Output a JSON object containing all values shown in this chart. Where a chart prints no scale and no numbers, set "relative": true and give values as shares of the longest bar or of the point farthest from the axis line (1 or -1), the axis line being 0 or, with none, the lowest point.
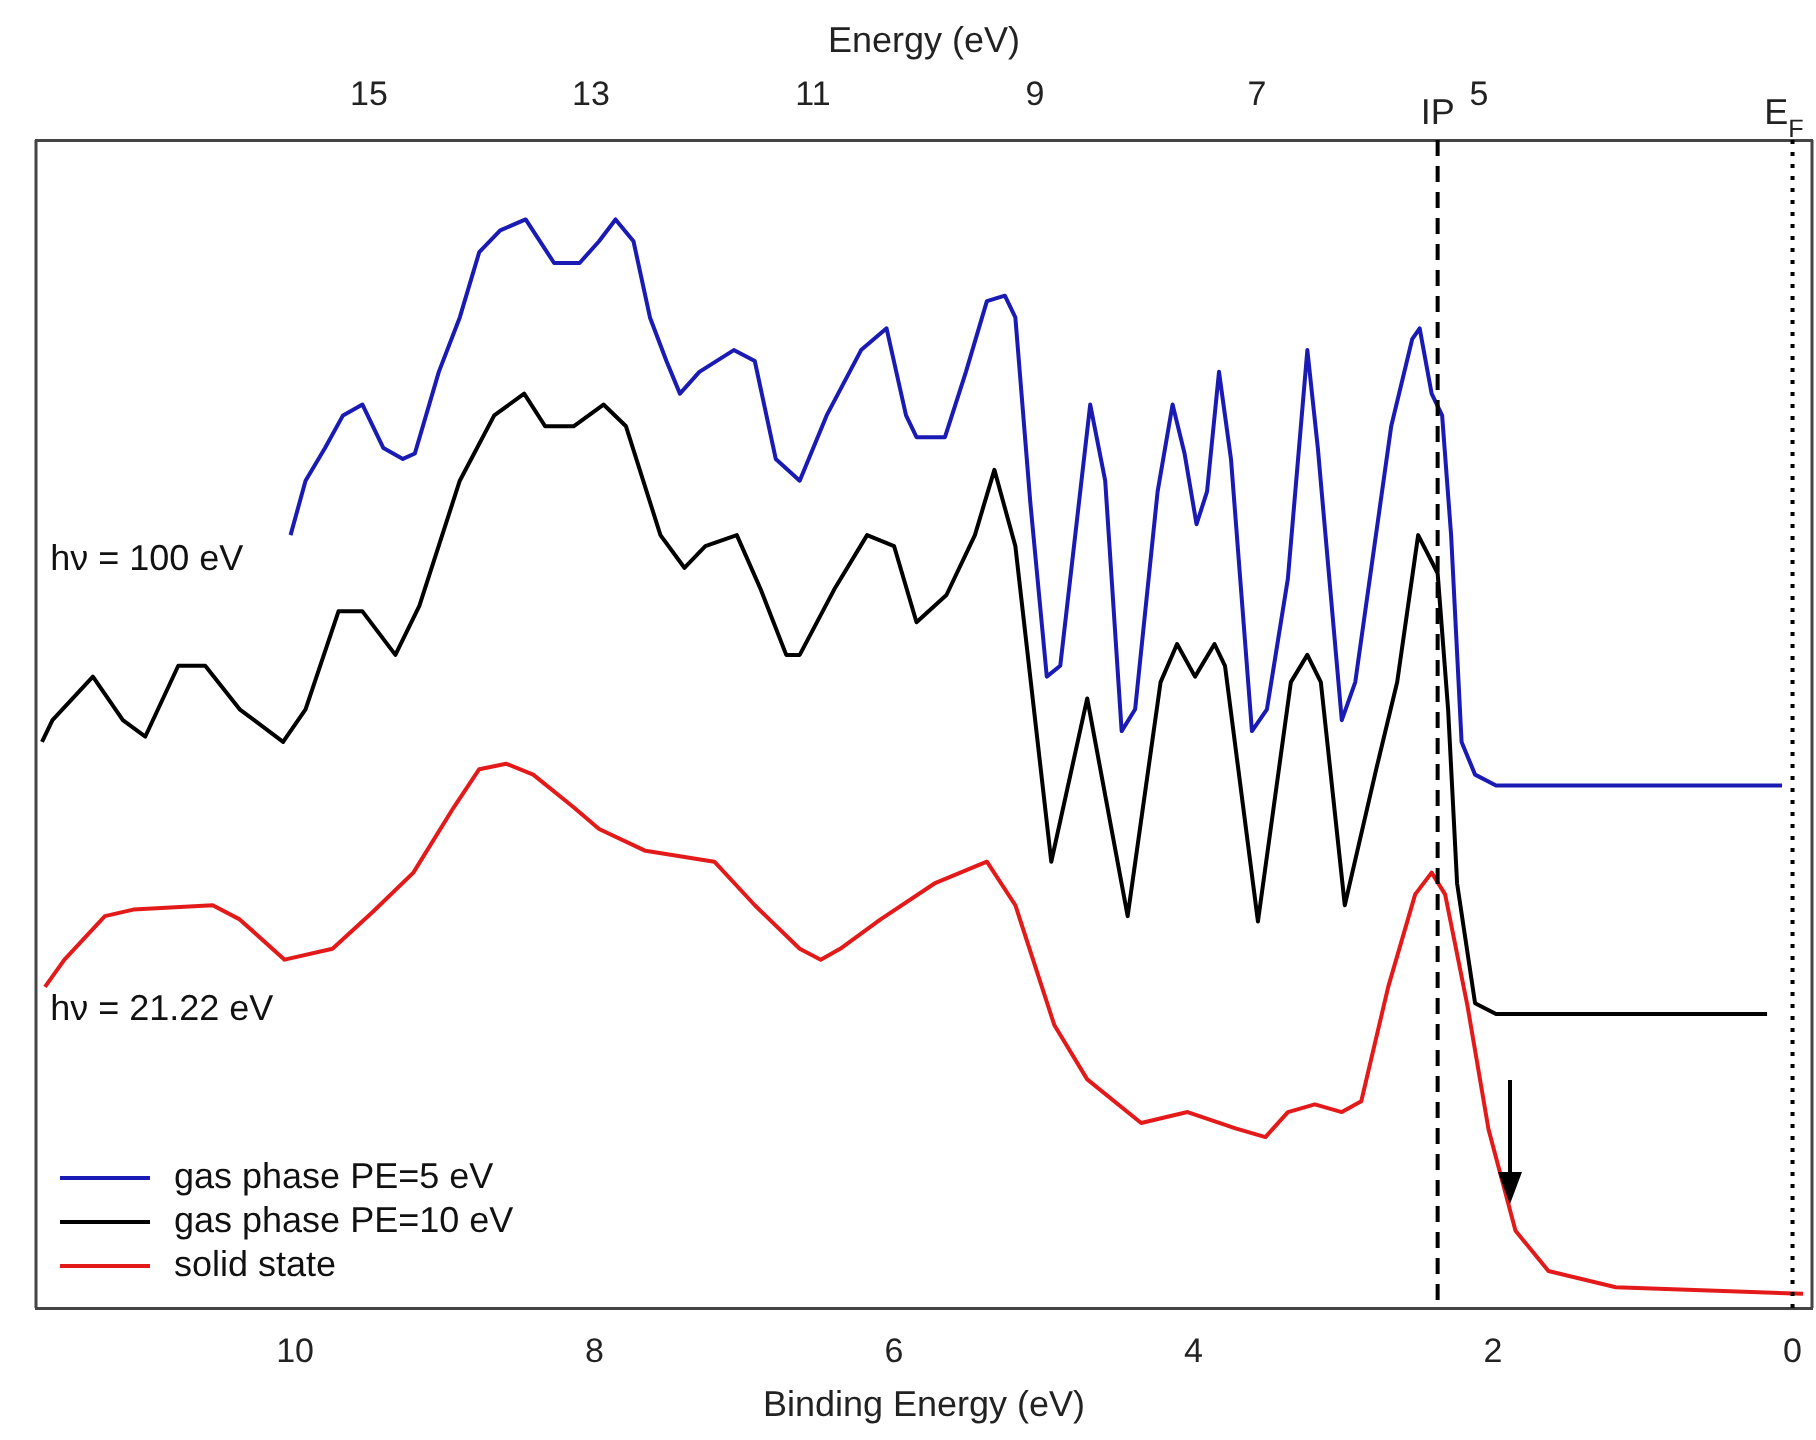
{
  "chart_data": {
    "type": "line",
    "xlabel": "Binding Energy (eV)",
    "x2label": "Energy (eV)",
    "xlim": [
      11.73,
      -0.13
    ],
    "xticks": [
      10,
      8,
      6,
      4,
      2,
      0
    ],
    "x2lim": [
      18.0,
      2.0
    ],
    "x2ticks": [
      15,
      13,
      11,
      9,
      7,
      5
    ],
    "relative": true,
    "legend": "bottom left",
    "marker": "none",
    "line_style": "solid",
    "grid": false,
    "annotations": [
      "hν = 100 eV",
      "hν = 21.22 eV"
    ],
    "ref_lines": [
      {
        "axis": "x",
        "value": 2.37,
        "label": "IP",
        "line_style": "dashed",
        "color": "#000000"
      },
      {
        "axis": "x",
        "value": 0,
        "label": "E$_{F}$",
        "line_style": "dotted",
        "color": "#000000"
      }
    ],
    "series": [
      {
        "name": "gas phase PE=5 eV",
        "color": "#1a1ab4",
        "x": [
          10.03,
          9.93,
          9.8,
          9.68,
          9.55,
          9.41,
          9.28,
          9.2,
          9.04,
          8.9,
          8.77,
          8.63,
          8.46,
          8.27,
          8.1,
          7.97,
          7.86,
          7.74,
          7.63,
          7.52,
          7.43,
          7.3,
          7.07,
          6.93,
          6.79,
          6.63,
          6.45,
          6.22,
          6.05,
          5.92,
          5.85,
          5.66,
          5.52,
          5.38,
          5.26,
          5.19,
          5.09,
          4.98,
          4.89,
          4.69,
          4.59,
          4.48,
          4.39,
          4.24,
          4.14,
          4.06,
          3.98,
          3.91,
          3.83,
          3.75,
          3.61,
          3.51,
          3.37,
          3.24,
          3.17,
          3.01,
          2.92,
          2.68,
          2.54,
          2.49,
          2.41,
          2.34,
          2.28,
          2.21,
          2.12,
          1.98,
          0.07
        ],
        "values": [
          0.71,
          0.76,
          0.79,
          0.82,
          0.83,
          0.79,
          0.78,
          0.785,
          0.86,
          0.91,
          0.97,
          0.99,
          1.0,
          0.96,
          0.96,
          0.98,
          1.0,
          0.98,
          0.91,
          0.87,
          0.84,
          0.86,
          0.88,
          0.87,
          0.78,
          0.76,
          0.82,
          0.88,
          0.9,
          0.82,
          0.8,
          0.8,
          0.86,
          0.925,
          0.93,
          0.91,
          0.74,
          0.58,
          0.59,
          0.83,
          0.76,
          0.53,
          0.55,
          0.75,
          0.83,
          0.785,
          0.72,
          0.75,
          0.86,
          0.78,
          0.53,
          0.55,
          0.67,
          0.88,
          0.79,
          0.54,
          0.575,
          0.81,
          0.89,
          0.9,
          0.84,
          0.82,
          0.71,
          0.52,
          0.49,
          0.48,
          0.48
        ]
      },
      {
        "name": "gas phase PE=10 eV",
        "color": "#000000",
        "x": [
          11.69,
          11.62,
          11.35,
          11.15,
          11.0,
          10.78,
          10.6,
          10.37,
          10.08,
          9.93,
          9.71,
          9.55,
          9.33,
          9.17,
          8.9,
          8.67,
          8.47,
          8.33,
          8.14,
          7.94,
          7.79,
          7.56,
          7.4,
          7.26,
          7.05,
          6.89,
          6.72,
          6.63,
          6.4,
          6.18,
          6.0,
          5.85,
          5.65,
          5.46,
          5.33,
          5.19,
          4.95,
          4.71,
          4.44,
          4.22,
          4.11,
          3.99,
          3.86,
          3.79,
          3.57,
          3.35,
          3.24,
          3.15,
          2.99,
          2.78,
          2.64,
          2.5,
          2.37,
          2.3,
          2.24,
          2.12,
          1.98,
          0.17
        ],
        "values": [
          0.52,
          0.54,
          0.58,
          0.54,
          0.525,
          0.59,
          0.59,
          0.55,
          0.52,
          0.55,
          0.64,
          0.64,
          0.6,
          0.645,
          0.76,
          0.82,
          0.84,
          0.81,
          0.81,
          0.83,
          0.81,
          0.71,
          0.68,
          0.7,
          0.71,
          0.66,
          0.6,
          0.6,
          0.66,
          0.71,
          0.7,
          0.63,
          0.655,
          0.71,
          0.77,
          0.7,
          0.41,
          0.56,
          0.36,
          0.575,
          0.61,
          0.58,
          0.61,
          0.59,
          0.355,
          0.575,
          0.6,
          0.575,
          0.37,
          0.495,
          0.575,
          0.71,
          0.675,
          0.55,
          0.39,
          0.28,
          0.27,
          0.27
        ]
      },
      {
        "name": "solid state",
        "color": "#e41a1a",
        "x": [
          11.67,
          11.54,
          11.27,
          11.08,
          10.55,
          10.37,
          10.07,
          9.75,
          9.48,
          9.21,
          8.94,
          8.77,
          8.59,
          8.41,
          8.14,
          7.97,
          7.66,
          7.2,
          6.93,
          6.63,
          6.49,
          6.36,
          6.09,
          5.73,
          5.38,
          5.19,
          4.93,
          4.71,
          4.35,
          4.04,
          3.72,
          3.52,
          3.37,
          3.19,
          3.01,
          2.88,
          2.7,
          2.52,
          2.41,
          2.32,
          2.17,
          2.03,
          1.85,
          1.63,
          1.18,
          -0.07
        ],
        "values": [
          0.295,
          0.32,
          0.36,
          0.366,
          0.37,
          0.357,
          0.32,
          0.33,
          0.364,
          0.4,
          0.46,
          0.495,
          0.5,
          0.49,
          0.46,
          0.44,
          0.42,
          0.41,
          0.37,
          0.33,
          0.32,
          0.33,
          0.357,
          0.39,
          0.41,
          0.37,
          0.26,
          0.21,
          0.17,
          0.18,
          0.165,
          0.157,
          0.18,
          0.187,
          0.18,
          0.19,
          0.295,
          0.38,
          0.4,
          0.38,
          0.277,
          0.164,
          0.071,
          0.034,
          0.019,
          0.013
        ]
      }
    ]
  }
}
